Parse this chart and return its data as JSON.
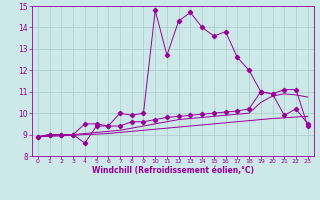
{
  "title": "",
  "xlabel": "Windchill (Refroidissement éolien,°C)",
  "xlim": [
    -0.5,
    23.5
  ],
  "ylim": [
    8,
    15
  ],
  "yticks": [
    8,
    9,
    10,
    11,
    12,
    13,
    14,
    15
  ],
  "xticks": [
    0,
    1,
    2,
    3,
    4,
    5,
    6,
    7,
    8,
    9,
    10,
    11,
    12,
    13,
    14,
    15,
    16,
    17,
    18,
    19,
    20,
    21,
    22,
    23
  ],
  "bg_color": "#cce8e8",
  "line_color": "#990099",
  "grid_color": "#aacccc",
  "line1_y": [
    8.9,
    9.0,
    9.0,
    9.0,
    9.5,
    9.5,
    9.4,
    10.0,
    9.9,
    10.0,
    14.8,
    12.7,
    14.3,
    14.7,
    14.0,
    13.6,
    13.8,
    12.6,
    12.0,
    11.0,
    10.9,
    9.9,
    10.2,
    9.5
  ],
  "line2_y": [
    8.9,
    9.0,
    9.0,
    9.0,
    8.6,
    9.4,
    9.4,
    9.4,
    9.6,
    9.6,
    9.7,
    9.8,
    9.85,
    9.9,
    9.95,
    10.0,
    10.05,
    10.1,
    10.2,
    11.0,
    10.9,
    11.1,
    11.1,
    9.4
  ],
  "line3_y": [
    8.9,
    8.95,
    8.98,
    9.0,
    9.05,
    9.1,
    9.15,
    9.2,
    9.3,
    9.4,
    9.5,
    9.6,
    9.7,
    9.75,
    9.8,
    9.85,
    9.9,
    9.95,
    10.0,
    10.5,
    10.8,
    10.9,
    10.85,
    10.75
  ],
  "line4_y": [
    8.9,
    8.92,
    8.94,
    8.97,
    9.0,
    9.02,
    9.05,
    9.1,
    9.15,
    9.2,
    9.25,
    9.3,
    9.35,
    9.4,
    9.45,
    9.5,
    9.55,
    9.6,
    9.65,
    9.7,
    9.75,
    9.78,
    9.82,
    9.85
  ],
  "figsize": [
    3.2,
    2.0
  ],
  "dpi": 100
}
